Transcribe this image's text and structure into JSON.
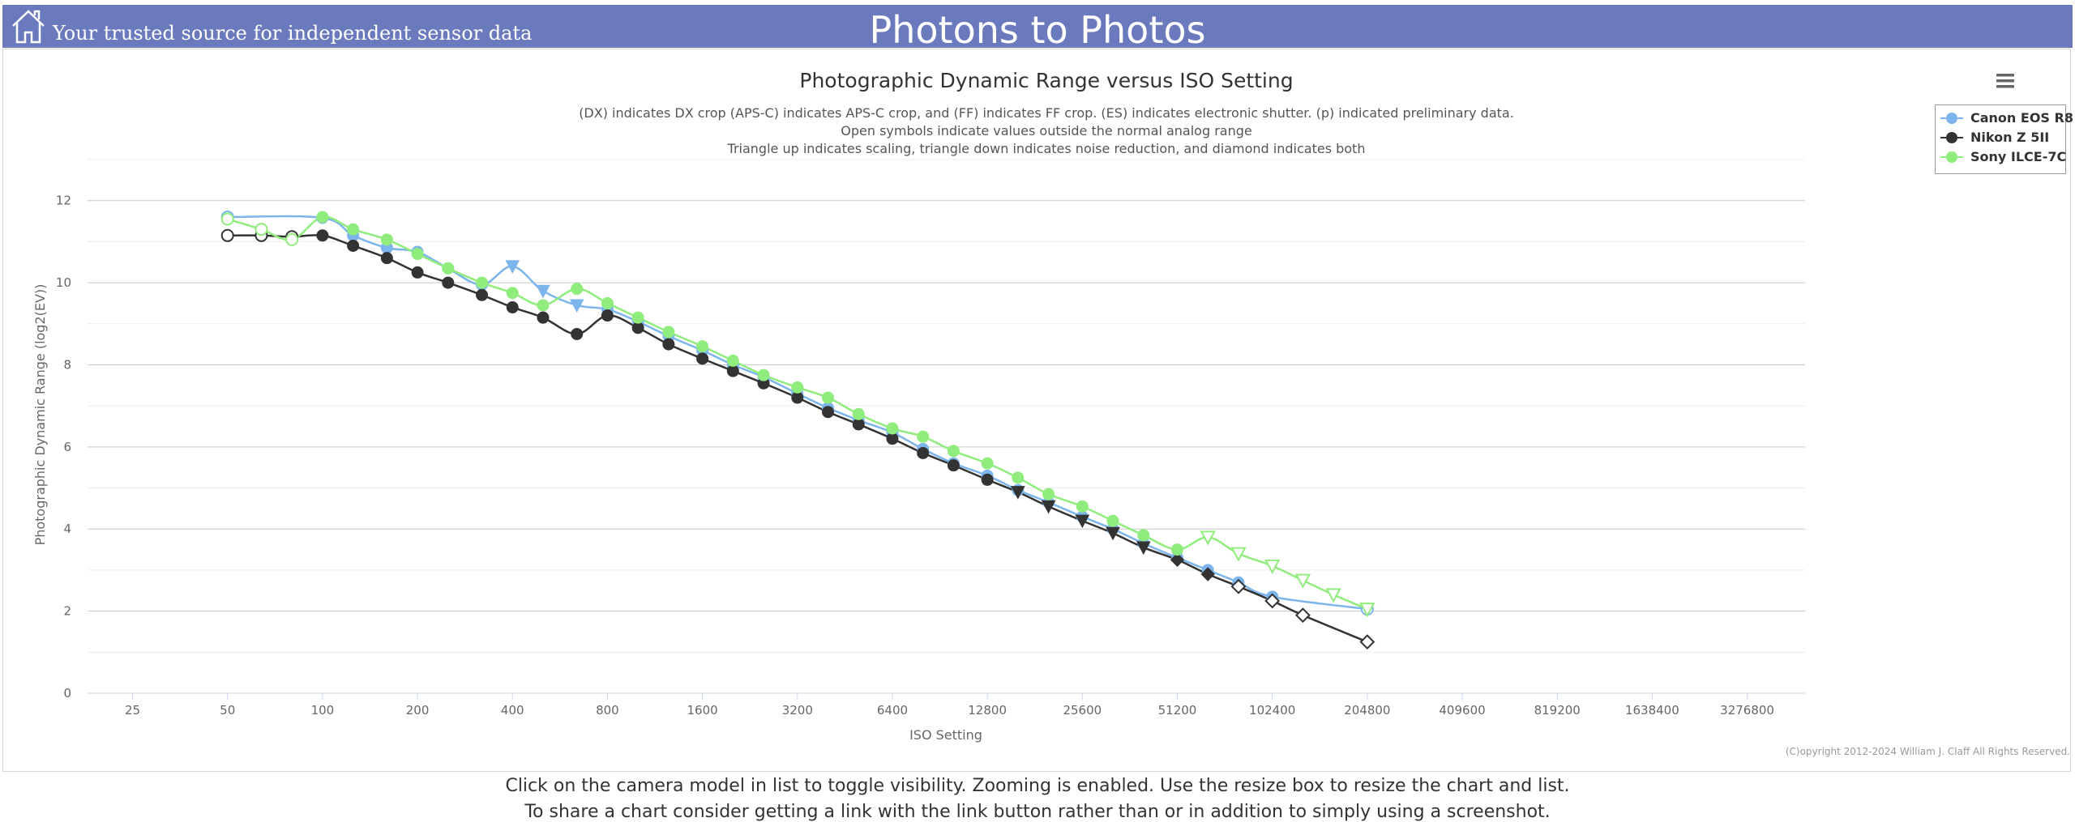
{
  "header": {
    "tagline": "Your trusted source for independent sensor data",
    "site_title": "Photons to Photos",
    "home_icon": "home-icon"
  },
  "chart_data": {
    "type": "line",
    "title": "Photographic Dynamic Range versus ISO Setting",
    "subtitle": [
      "(DX) indicates DX crop (APS-C) indicates APS-C crop, and (FF) indicates FF crop. (ES) indicates electronic shutter. (p) indicated preliminary data.",
      "Open symbols indicate values outside the normal analog range",
      "Triangle up indicates scaling, triangle down indicates noise reduction, and diamond indicates both"
    ],
    "xlabel": "ISO Setting",
    "ylabel": "Photographic Dynamic Range (log2(EV))",
    "x_scale": "log2",
    "x_ticks": [
      25,
      50,
      100,
      200,
      400,
      800,
      1600,
      3200,
      6400,
      12800,
      25600,
      51200,
      102400,
      204800,
      409600,
      819200,
      1638400,
      3276800
    ],
    "x_range": [
      18,
      5000000
    ],
    "y_ticks": [
      0,
      2,
      4,
      6,
      8,
      10,
      12
    ],
    "ylim": [
      0,
      13
    ],
    "grid": true,
    "legend_position": "top-right",
    "series": [
      {
        "name": "Canon EOS R8",
        "color": "#7cb5ec",
        "points": [
          {
            "x": 50,
            "y": 11.6,
            "m": "circle-open"
          },
          {
            "x": 100,
            "y": 11.58,
            "m": "circle"
          },
          {
            "x": 125,
            "y": 11.15,
            "m": "circle"
          },
          {
            "x": 160,
            "y": 10.85,
            "m": "circle"
          },
          {
            "x": 200,
            "y": 10.75,
            "m": "circle"
          },
          {
            "x": 250,
            "y": 10.35,
            "m": "circle"
          },
          {
            "x": 320,
            "y": 9.95,
            "m": "circle"
          },
          {
            "x": 400,
            "y": 10.4,
            "m": "tri-down"
          },
          {
            "x": 500,
            "y": 9.8,
            "m": "tri-down"
          },
          {
            "x": 640,
            "y": 9.45,
            "m": "tri-down"
          },
          {
            "x": 800,
            "y": 9.35,
            "m": "circle"
          },
          {
            "x": 1000,
            "y": 9.05,
            "m": "circle"
          },
          {
            "x": 1250,
            "y": 8.7,
            "m": "circle"
          },
          {
            "x": 1600,
            "y": 8.35,
            "m": "circle"
          },
          {
            "x": 2000,
            "y": 8.0,
            "m": "circle"
          },
          {
            "x": 2500,
            "y": 7.7,
            "m": "circle"
          },
          {
            "x": 3200,
            "y": 7.3,
            "m": "circle"
          },
          {
            "x": 4000,
            "y": 6.95,
            "m": "circle"
          },
          {
            "x": 5000,
            "y": 6.65,
            "m": "circle"
          },
          {
            "x": 6400,
            "y": 6.35,
            "m": "circle"
          },
          {
            "x": 8000,
            "y": 5.95,
            "m": "circle"
          },
          {
            "x": 10000,
            "y": 5.6,
            "m": "circle"
          },
          {
            "x": 12800,
            "y": 5.3,
            "m": "circle"
          },
          {
            "x": 16000,
            "y": 4.95,
            "m": "circle"
          },
          {
            "x": 20000,
            "y": 4.65,
            "m": "circle"
          },
          {
            "x": 25600,
            "y": 4.3,
            "m": "circle"
          },
          {
            "x": 32000,
            "y": 4.0,
            "m": "circle"
          },
          {
            "x": 40000,
            "y": 3.65,
            "m": "circle"
          },
          {
            "x": 51200,
            "y": 3.3,
            "m": "circle"
          },
          {
            "x": 64000,
            "y": 3.0,
            "m": "circle"
          },
          {
            "x": 80000,
            "y": 2.7,
            "m": "circle"
          },
          {
            "x": 102400,
            "y": 2.35,
            "m": "circle"
          },
          {
            "x": 204800,
            "y": 2.05,
            "m": "circle-open"
          }
        ]
      },
      {
        "name": "Nikon Z 5II",
        "color": "#333333",
        "points": [
          {
            "x": 50,
            "y": 11.15,
            "m": "circle-open"
          },
          {
            "x": 64,
            "y": 11.15,
            "m": "circle-open"
          },
          {
            "x": 80,
            "y": 11.12,
            "m": "circle-open"
          },
          {
            "x": 100,
            "y": 11.15,
            "m": "circle"
          },
          {
            "x": 125,
            "y": 10.9,
            "m": "circle"
          },
          {
            "x": 160,
            "y": 10.6,
            "m": "circle"
          },
          {
            "x": 200,
            "y": 10.25,
            "m": "circle"
          },
          {
            "x": 250,
            "y": 10.0,
            "m": "circle"
          },
          {
            "x": 320,
            "y": 9.7,
            "m": "circle"
          },
          {
            "x": 400,
            "y": 9.4,
            "m": "circle"
          },
          {
            "x": 500,
            "y": 9.15,
            "m": "circle"
          },
          {
            "x": 640,
            "y": 8.75,
            "m": "circle"
          },
          {
            "x": 800,
            "y": 9.2,
            "m": "circle"
          },
          {
            "x": 1000,
            "y": 8.9,
            "m": "circle"
          },
          {
            "x": 1250,
            "y": 8.5,
            "m": "circle"
          },
          {
            "x": 1600,
            "y": 8.15,
            "m": "circle"
          },
          {
            "x": 2000,
            "y": 7.85,
            "m": "circle"
          },
          {
            "x": 2500,
            "y": 7.55,
            "m": "circle"
          },
          {
            "x": 3200,
            "y": 7.2,
            "m": "circle"
          },
          {
            "x": 4000,
            "y": 6.85,
            "m": "circle"
          },
          {
            "x": 5000,
            "y": 6.55,
            "m": "circle"
          },
          {
            "x": 6400,
            "y": 6.2,
            "m": "circle"
          },
          {
            "x": 8000,
            "y": 5.85,
            "m": "circle"
          },
          {
            "x": 10000,
            "y": 5.55,
            "m": "circle"
          },
          {
            "x": 12800,
            "y": 5.2,
            "m": "circle"
          },
          {
            "x": 16000,
            "y": 4.9,
            "m": "tri-down"
          },
          {
            "x": 20000,
            "y": 4.55,
            "m": "tri-down"
          },
          {
            "x": 25600,
            "y": 4.2,
            "m": "tri-down"
          },
          {
            "x": 32000,
            "y": 3.9,
            "m": "tri-down"
          },
          {
            "x": 40000,
            "y": 3.55,
            "m": "tri-down"
          },
          {
            "x": 51200,
            "y": 3.25,
            "m": "diamond"
          },
          {
            "x": 64000,
            "y": 2.9,
            "m": "diamond"
          },
          {
            "x": 80000,
            "y": 2.6,
            "m": "diamond-open"
          },
          {
            "x": 102400,
            "y": 2.25,
            "m": "diamond-open"
          },
          {
            "x": 128000,
            "y": 1.9,
            "m": "diamond-open"
          },
          {
            "x": 204800,
            "y": 1.25,
            "m": "diamond-open"
          }
        ]
      },
      {
        "name": "Sony ILCE-7C",
        "color": "#90ed7d",
        "points": [
          {
            "x": 50,
            "y": 11.55,
            "m": "circle-open"
          },
          {
            "x": 64,
            "y": 11.3,
            "m": "circle-open"
          },
          {
            "x": 80,
            "y": 11.05,
            "m": "circle-open"
          },
          {
            "x": 100,
            "y": 11.6,
            "m": "circle"
          },
          {
            "x": 125,
            "y": 11.3,
            "m": "circle"
          },
          {
            "x": 160,
            "y": 11.05,
            "m": "circle"
          },
          {
            "x": 200,
            "y": 10.7,
            "m": "circle"
          },
          {
            "x": 250,
            "y": 10.35,
            "m": "circle"
          },
          {
            "x": 320,
            "y": 10.0,
            "m": "circle"
          },
          {
            "x": 400,
            "y": 9.75,
            "m": "circle"
          },
          {
            "x": 500,
            "y": 9.45,
            "m": "circle"
          },
          {
            "x": 640,
            "y": 9.85,
            "m": "circle"
          },
          {
            "x": 800,
            "y": 9.5,
            "m": "circle"
          },
          {
            "x": 1000,
            "y": 9.15,
            "m": "circle"
          },
          {
            "x": 1250,
            "y": 8.8,
            "m": "circle"
          },
          {
            "x": 1600,
            "y": 8.45,
            "m": "circle"
          },
          {
            "x": 2000,
            "y": 8.1,
            "m": "circle"
          },
          {
            "x": 2500,
            "y": 7.75,
            "m": "circle"
          },
          {
            "x": 3200,
            "y": 7.45,
            "m": "circle"
          },
          {
            "x": 4000,
            "y": 7.2,
            "m": "circle"
          },
          {
            "x": 5000,
            "y": 6.8,
            "m": "circle"
          },
          {
            "x": 6400,
            "y": 6.45,
            "m": "circle"
          },
          {
            "x": 8000,
            "y": 6.25,
            "m": "circle"
          },
          {
            "x": 10000,
            "y": 5.9,
            "m": "circle"
          },
          {
            "x": 12800,
            "y": 5.6,
            "m": "circle"
          },
          {
            "x": 16000,
            "y": 5.25,
            "m": "circle"
          },
          {
            "x": 20000,
            "y": 4.85,
            "m": "circle"
          },
          {
            "x": 25600,
            "y": 4.55,
            "m": "circle"
          },
          {
            "x": 32000,
            "y": 4.2,
            "m": "circle"
          },
          {
            "x": 40000,
            "y": 3.85,
            "m": "circle"
          },
          {
            "x": 51200,
            "y": 3.5,
            "m": "circle"
          },
          {
            "x": 64000,
            "y": 3.8,
            "m": "tri-down-open"
          },
          {
            "x": 80000,
            "y": 3.4,
            "m": "tri-down-open"
          },
          {
            "x": 102400,
            "y": 3.1,
            "m": "tri-down-open"
          },
          {
            "x": 128000,
            "y": 2.75,
            "m": "tri-down-open"
          },
          {
            "x": 160000,
            "y": 2.4,
            "m": "tri-down-open"
          },
          {
            "x": 204800,
            "y": 2.05,
            "m": "tri-down-open"
          }
        ]
      }
    ]
  },
  "chart_menu_icon": "hamburger-menu-icon",
  "copyright": "(C)opyright 2012-2024 William J. Claff All Rights Reserved.",
  "footer": {
    "line1": "Click on the camera model in list to toggle visibility. Zooming is enabled. Use the resize box to resize the chart and list.",
    "line2": "To share a chart consider getting a link with the link button rather than or in addition to simply using a screenshot."
  }
}
